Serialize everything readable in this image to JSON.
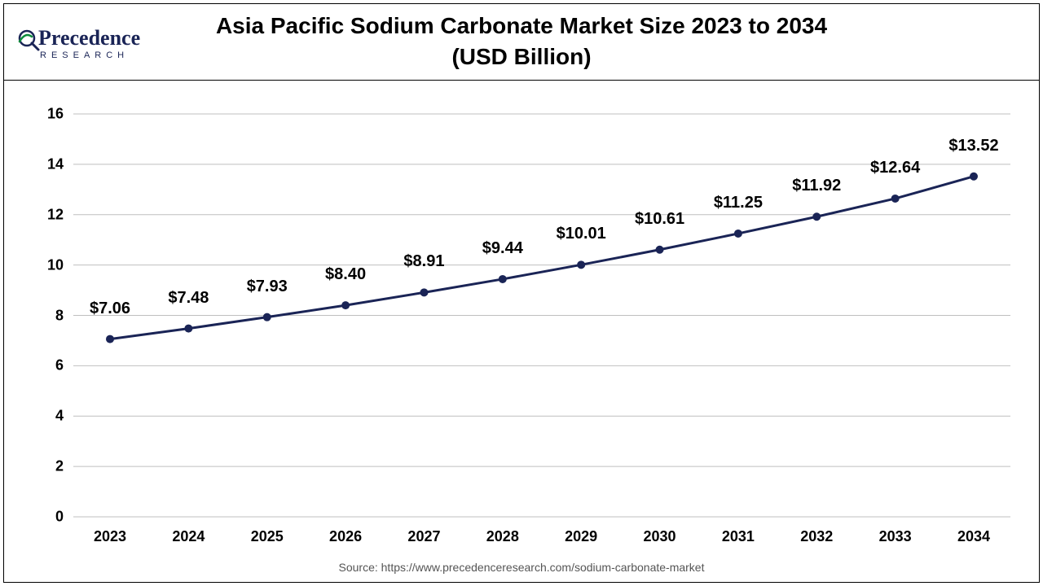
{
  "title_line1": "Asia Pacific Sodium Carbonate Market Size 2023 to 2034",
  "title_line2": "(USD Billion)",
  "logo_text": "Precedence",
  "logo_sub": "RESEARCH",
  "chart": {
    "type": "line",
    "years": [
      "2023",
      "2024",
      "2025",
      "2026",
      "2027",
      "2028",
      "2029",
      "2030",
      "2031",
      "2032",
      "2033",
      "2034"
    ],
    "values": [
      7.06,
      7.48,
      7.93,
      8.4,
      8.91,
      9.44,
      10.01,
      10.61,
      11.25,
      11.92,
      12.64,
      13.52
    ],
    "labels": [
      "$7.06",
      "$7.48",
      "$7.93",
      "$8.40",
      "$8.91",
      "$9.44",
      "$10.01",
      "$10.61",
      "$11.25",
      "$11.92",
      "$12.64",
      "$13.52"
    ],
    "ylim": [
      0,
      16
    ],
    "ytick_step": 2,
    "yticks": [
      0,
      2,
      4,
      6,
      8,
      10,
      12,
      14,
      16
    ],
    "line_color": "#1a2456",
    "line_width": 3,
    "marker_color": "#1a2456",
    "marker_radius": 5,
    "grid_color": "#bfbfbf",
    "grid_width": 1,
    "background_color": "#ffffff",
    "tick_font_size": 18,
    "tick_font_weight": 700,
    "data_label_font_size": 20,
    "data_label_font_weight": 700,
    "title_font_size": 28,
    "label_offset_y": -26
  },
  "source": "Source: https://www.precedenceresearch.com/sodium-carbonate-market"
}
